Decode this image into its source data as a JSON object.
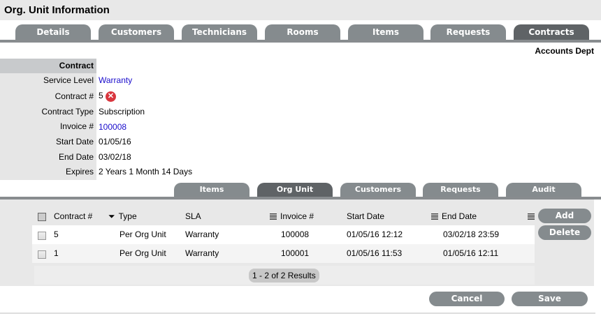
{
  "title": "Org. Unit Information",
  "tabs": [
    {
      "label": "Details"
    },
    {
      "label": "Customers"
    },
    {
      "label": "Technicians"
    },
    {
      "label": "Rooms"
    },
    {
      "label": "Items"
    },
    {
      "label": "Requests"
    },
    {
      "label": "Contracts",
      "active": true
    }
  ],
  "org_unit_name": "Accounts Dept",
  "section_header": "Contract",
  "fields": [
    {
      "label": "Service Level",
      "value": "Warranty"
    },
    {
      "label": "Contract #",
      "value": "5"
    },
    {
      "label": "Contract Type",
      "value": "Subscription"
    },
    {
      "label": "Invoice #",
      "value": "100008"
    },
    {
      "label": "Start Date",
      "value": "01/05/16"
    },
    {
      "label": "End Date",
      "value": "03/02/18"
    },
    {
      "label": "Expires",
      "value": "2 Years 1 Month 14 Days"
    }
  ],
  "sub_tabs": [
    {
      "label": "Items"
    },
    {
      "label": "Org Unit",
      "active": true
    },
    {
      "label": "Customers"
    },
    {
      "label": "Requests"
    },
    {
      "label": "Audit"
    }
  ],
  "table": {
    "columns": [
      "Contract #",
      "Type",
      "SLA",
      "Invoice #",
      "Start Date",
      "End Date"
    ],
    "rows": [
      [
        "5",
        "Per Org Unit",
        "Warranty",
        "100008",
        "01/05/16 12:12",
        "03/02/18 23:59"
      ],
      [
        "1",
        "Per Org Unit",
        "Warranty",
        "100001",
        "01/05/16 11:53",
        "01/05/16 12:11"
      ]
    ],
    "pagination": "1 - 2 of 2 Results"
  },
  "buttons": {
    "add": "Add",
    "delete": "Delete",
    "cancel": "Cancel",
    "save": "Save"
  },
  "colors": {
    "tab": "#858b8e",
    "tab_active": "#5f6366",
    "link": "#1a0dcc",
    "delete_icon": "#d9363e"
  }
}
